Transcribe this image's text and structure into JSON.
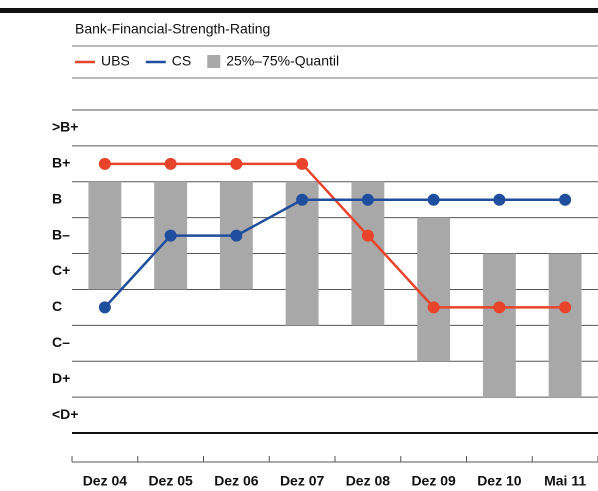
{
  "chart_data": {
    "type": "line",
    "subtitle": "Bank-Financial-Strength-Rating",
    "categories": [
      "Dez 04",
      "Dez 05",
      "Dez 06",
      "Dez 07",
      "Dez 08",
      "Dez 09",
      "Dez 10",
      "Mai 11"
    ],
    "series": [
      {
        "name": "UBS",
        "color": "#e8432b",
        "values": [
          7,
          7,
          7,
          7,
          5,
          3,
          3,
          3
        ]
      },
      {
        "name": "CS",
        "color": "#1f4e9e",
        "values": [
          3,
          5,
          5,
          6,
          6,
          6,
          6,
          6
        ]
      }
    ],
    "quantile": {
      "name": "25%–75%-Quantil",
      "color": "#a8a8a8",
      "low": [
        3.5,
        3.5,
        3.5,
        2.5,
        2.5,
        1.5,
        0.5,
        0.5
      ],
      "high": [
        6.5,
        6.5,
        6.5,
        6.5,
        6.5,
        5.5,
        4.5,
        4.5
      ]
    },
    "ylim": [
      -0.5,
      8.5
    ],
    "yticks": [
      {
        "value": 0,
        "label": "<D+"
      },
      {
        "value": 1,
        "label": "D+"
      },
      {
        "value": 2,
        "label": "C–"
      },
      {
        "value": 3,
        "label": "C"
      },
      {
        "value": 4,
        "label": "C+"
      },
      {
        "value": 5,
        "label": "B–"
      },
      {
        "value": 6,
        "label": "B"
      },
      {
        "value": 7,
        "label": "B+"
      },
      {
        "value": 8,
        "label": ">B+"
      }
    ]
  }
}
